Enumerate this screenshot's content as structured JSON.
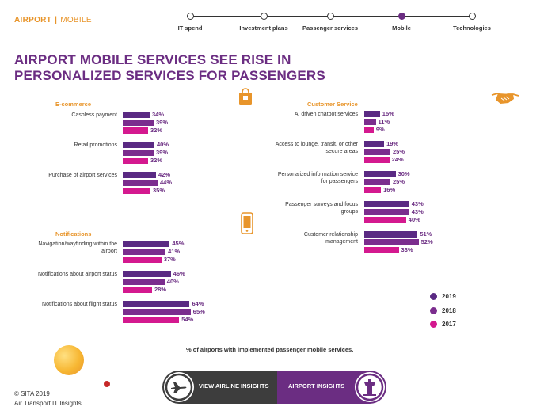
{
  "header": {
    "section": "AIRPORT",
    "separator": "|",
    "subsection": "MOBILE"
  },
  "nav": {
    "items": [
      {
        "label": "IT spend",
        "active": false
      },
      {
        "label": "Investment plans",
        "active": false
      },
      {
        "label": "Passenger services",
        "active": false
      },
      {
        "label": "Mobile",
        "active": true
      },
      {
        "label": "Technologies",
        "active": false
      }
    ]
  },
  "title": {
    "line1": "AIRPORT MOBILE SERVICES SEE RISE IN",
    "line2": "PERSONALIZED SERVICES FOR PASSENGERS"
  },
  "colors": {
    "accent": "#e8952b",
    "brand": "#6b2d82",
    "y2019": "#5a2a83",
    "y2018": "#7b2d8e",
    "y2017": "#d4198f"
  },
  "icons": {
    "ecommerce": "shopping-bag-icon",
    "customer_service": "handshake-icon",
    "notifications": "smartphone-icon",
    "airline": "airplane-icon",
    "airport": "control-tower-icon"
  },
  "chart_data": [
    {
      "type": "bar",
      "title": "E-commerce",
      "categories": [
        "Cashless payment",
        "Retail promotions",
        "Purchase of airport services"
      ],
      "series": [
        {
          "name": "2019",
          "values": [
            34,
            40,
            42
          ]
        },
        {
          "name": "2018",
          "values": [
            39,
            39,
            44
          ]
        },
        {
          "name": "2017",
          "values": [
            32,
            32,
            35
          ]
        }
      ],
      "ylim": [
        0,
        100
      ]
    },
    {
      "type": "bar",
      "title": "Notifications",
      "categories": [
        "Navigation/wayfinding within the airport",
        "Notifications about airport status",
        "Notifications about flight status"
      ],
      "series": [
        {
          "name": "2019",
          "values": [
            45,
            46,
            64
          ]
        },
        {
          "name": "2018",
          "values": [
            41,
            40,
            65
          ]
        },
        {
          "name": "2017",
          "values": [
            37,
            28,
            54
          ]
        }
      ],
      "ylim": [
        0,
        100
      ]
    },
    {
      "type": "bar",
      "title": "Customer Service",
      "categories": [
        "AI driven chatbot services",
        "Access to lounge, transit, or other secure areas",
        "Personalized information service for passengers",
        "Passenger surveys and focus groups",
        "Customer relationship management"
      ],
      "series": [
        {
          "name": "2019",
          "values": [
            15,
            19,
            30,
            43,
            51
          ]
        },
        {
          "name": "2018",
          "values": [
            11,
            25,
            25,
            43,
            52
          ]
        },
        {
          "name": "2017",
          "values": [
            9,
            24,
            16,
            40,
            33
          ]
        }
      ],
      "ylim": [
        0,
        100
      ]
    }
  ],
  "legend": [
    {
      "label": "2019"
    },
    {
      "label": "2018"
    },
    {
      "label": "2017"
    }
  ],
  "footnote": "% of airports with implemented passenger mobile services.",
  "footer": {
    "copyright": "© SITA 2019",
    "publisher": "Air Transport IT Insights"
  },
  "cta": {
    "airline_label": "VIEW AIRLINE INSIGHTS",
    "airport_label": "AIRPORT INSIGHTS"
  }
}
